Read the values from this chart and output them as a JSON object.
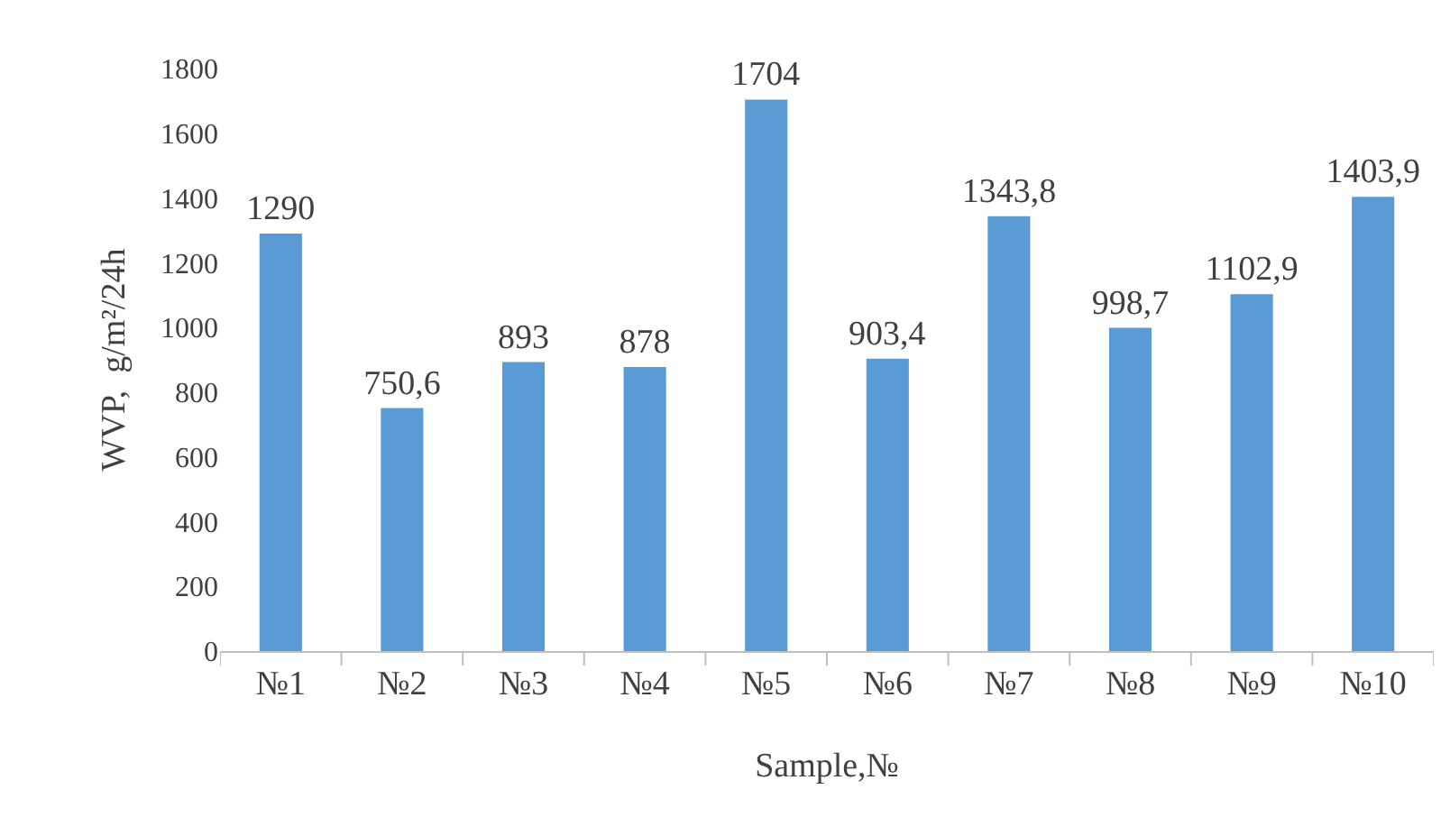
{
  "chart_data": {
    "type": "bar",
    "xlabel": "Sample,№",
    "ylabel": "WVP,  g/m²/24h",
    "categories": [
      "№1",
      "№2",
      "№3",
      "№4",
      "№5",
      "№6",
      "№7",
      "№8",
      "№9",
      "№10"
    ],
    "values": [
      1290,
      750.6,
      893,
      878,
      1704,
      903.4,
      1343.8,
      998.7,
      1102.9,
      1403.9
    ],
    "value_labels": [
      "1290",
      "750,6",
      "893",
      "878",
      "1704",
      "903,4",
      "1343,8",
      "998,7",
      "1102,9",
      "1403,9"
    ],
    "color": "#5b9bd5",
    "ylim": [
      0,
      1800
    ],
    "yticks": [
      0,
      200,
      400,
      600,
      800,
      1000,
      1200,
      1400,
      1600,
      1800
    ],
    "grid": false
  }
}
